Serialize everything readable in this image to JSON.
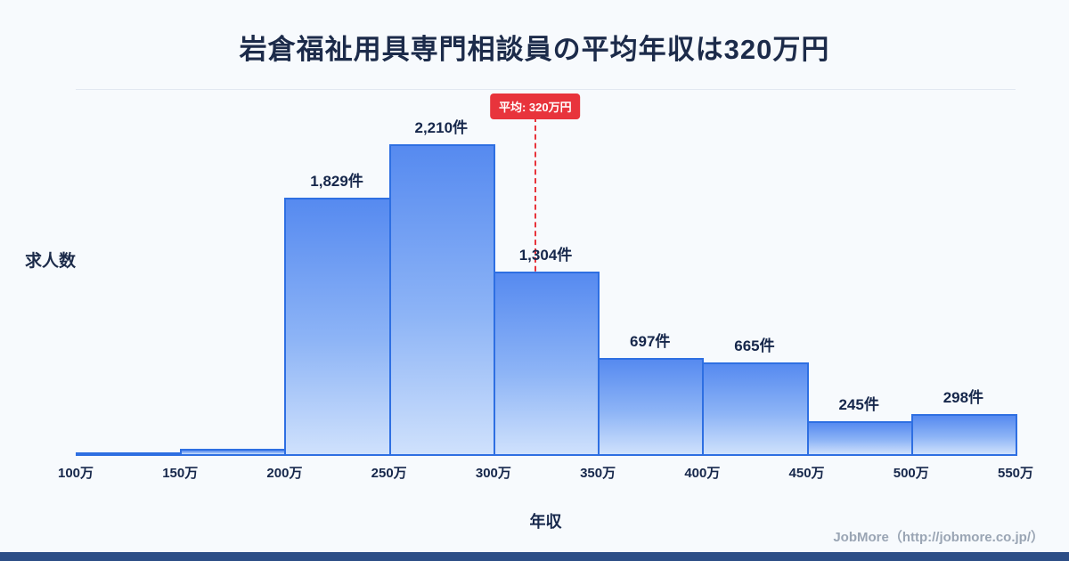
{
  "page": {
    "title": "岩倉福祉用具専門相談員の平均年収は320万円",
    "footer": "JobMore（http://jobmore.co.jp/）"
  },
  "chart_data": {
    "type": "bar",
    "title": "岩倉福祉用具専門相談員の平均年収は320万円",
    "xlabel": "年収",
    "ylabel": "求人数",
    "x_range": [
      100,
      550
    ],
    "tick_labels": [
      "100万",
      "150万",
      "200万",
      "250万",
      "300万",
      "350万",
      "400万",
      "450万",
      "500万",
      "550万"
    ],
    "bins": [
      {
        "range": "100万-150万",
        "value": 20,
        "label": ""
      },
      {
        "range": "150万-200万",
        "value": 50,
        "label": ""
      },
      {
        "range": "200万-250万",
        "value": 1829,
        "label": "1,829件"
      },
      {
        "range": "250万-300万",
        "value": 2210,
        "label": "2,210件"
      },
      {
        "range": "300万-350万",
        "value": 1304,
        "label": "1,304件"
      },
      {
        "range": "350万-400万",
        "value": 697,
        "label": "697件"
      },
      {
        "range": "400万-450万",
        "value": 665,
        "label": "665件"
      },
      {
        "range": "450万-500万",
        "value": 245,
        "label": "245件"
      },
      {
        "range": "500万-550万",
        "value": 298,
        "label": "298件"
      }
    ],
    "average_line": {
      "x_value": 320,
      "label": "平均: 320万円",
      "color": "#e8343c"
    },
    "colors": {
      "bar_border": "#2e6fe2",
      "bar_fill_top": "#568af0",
      "bar_fill_bottom": "#cfe1fc",
      "accent_strip": "#2d4e86",
      "title_text": "#1c2b4a"
    },
    "legend": null,
    "grid": false
  }
}
